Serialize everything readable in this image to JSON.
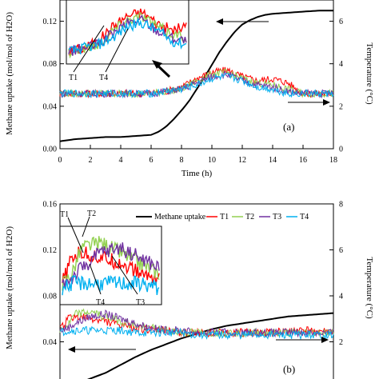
{
  "chart_data": [
    {
      "type": "line",
      "panel_label": "(a)",
      "xlabel": "Time (h)",
      "ylabel": "Methane uptake (mol/mol of H2O)",
      "ylabel_right": "Temperature (°C)",
      "xlim": [
        0,
        18
      ],
      "ylim": [
        0,
        0.14
      ],
      "ylim_right": [
        0,
        7
      ],
      "x_ticks": [
        "0",
        "2",
        "4",
        "6",
        "8",
        "10",
        "12",
        "14",
        "16",
        "18"
      ],
      "y_ticks": [
        "0.00",
        "0.04",
        "0.08",
        "0.12"
      ],
      "y_ticks_right": [
        "0",
        "2",
        "4",
        "6"
      ],
      "inset_labels": [
        "T1",
        "T4"
      ],
      "series": [
        {
          "name": "Methane uptake",
          "axis": "left",
          "color": "#000000",
          "x": [
            0,
            1,
            2,
            3,
            4,
            5,
            6,
            6.5,
            7,
            7.5,
            8,
            8.5,
            9,
            9.5,
            10,
            10.5,
            11,
            11.5,
            12,
            12.5,
            13,
            13.5,
            14,
            15,
            16,
            17,
            18
          ],
          "y": [
            0.007,
            0.009,
            0.01,
            0.011,
            0.011,
            0.012,
            0.013,
            0.016,
            0.021,
            0.028,
            0.036,
            0.045,
            0.056,
            0.067,
            0.079,
            0.091,
            0.101,
            0.11,
            0.117,
            0.121,
            0.124,
            0.126,
            0.127,
            0.128,
            0.129,
            0.13,
            0.13
          ]
        },
        {
          "name": "T1",
          "axis": "right",
          "color": "#ff0000",
          "x": [
            0,
            2,
            4,
            6,
            7,
            8,
            9,
            10,
            11,
            12,
            13,
            14,
            15,
            16,
            18
          ],
          "y": [
            2.6,
            2.6,
            2.6,
            2.6,
            2.7,
            2.9,
            3.3,
            3.6,
            3.7,
            3.4,
            3.2,
            3.3,
            3.1,
            2.6,
            2.6
          ]
        },
        {
          "name": "T2",
          "axis": "right",
          "color": "#92d050",
          "x": [
            0,
            2,
            4,
            6,
            7,
            8,
            9,
            10,
            11,
            12,
            13,
            14,
            15,
            16,
            18
          ],
          "y": [
            2.6,
            2.6,
            2.6,
            2.6,
            2.7,
            2.8,
            3.2,
            3.5,
            3.6,
            3.3,
            3.1,
            3.0,
            2.8,
            2.6,
            2.6
          ]
        },
        {
          "name": "T3",
          "axis": "right",
          "color": "#7030a0",
          "x": [
            0,
            2,
            4,
            6,
            7,
            8,
            9,
            10,
            11,
            12,
            13,
            14,
            15,
            16,
            18
          ],
          "y": [
            2.6,
            2.6,
            2.6,
            2.6,
            2.7,
            2.8,
            3.1,
            3.4,
            3.5,
            3.2,
            3.0,
            2.9,
            2.7,
            2.6,
            2.6
          ]
        },
        {
          "name": "T4",
          "axis": "right",
          "color": "#00b0f0",
          "x": [
            0,
            2,
            4,
            6,
            7,
            8,
            9,
            10,
            11,
            12,
            13,
            14,
            15,
            16,
            18
          ],
          "y": [
            2.6,
            2.6,
            2.6,
            2.6,
            2.7,
            2.8,
            3.0,
            3.3,
            3.4,
            3.2,
            2.9,
            2.8,
            2.6,
            2.6,
            2.6
          ]
        }
      ]
    },
    {
      "type": "line",
      "panel_label": "(b)",
      "xlabel": "",
      "ylabel": "Methane uptake (mol/mol of H2O)",
      "ylabel_right": "Temperature (°C)",
      "xlim": [
        0,
        18
      ],
      "ylim": [
        0,
        0.16
      ],
      "ylim_right": [
        0,
        8
      ],
      "y_ticks": [
        "0.04",
        "0.08",
        "0.12",
        "0.16"
      ],
      "y_ticks_right": [
        "2",
        "4",
        "6",
        "8"
      ],
      "inset_labels": [
        "T1",
        "T2",
        "T4",
        "T3"
      ],
      "legend": [
        "Methane uptake",
        "T1",
        "T2",
        "T3",
        "T4"
      ],
      "series": [
        {
          "name": "Methane uptake",
          "axis": "left",
          "color": "#000000",
          "x": [
            1,
            2,
            3,
            4,
            5,
            6,
            7,
            8,
            9,
            10,
            11,
            12,
            13,
            14,
            15,
            16,
            17,
            18
          ],
          "y": [
            0.003,
            0.008,
            0.013,
            0.02,
            0.027,
            0.033,
            0.038,
            0.043,
            0.047,
            0.051,
            0.054,
            0.056,
            0.058,
            0.06,
            0.062,
            0.063,
            0.064,
            0.065
          ]
        },
        {
          "name": "T1",
          "axis": "right",
          "color": "#ff0000",
          "x": [
            0,
            0.5,
            1,
            2,
            3,
            4,
            5,
            6,
            7,
            8,
            9,
            10,
            12,
            14,
            16,
            18
          ],
          "y": [
            2.5,
            3.0,
            3.1,
            3.0,
            2.9,
            2.7,
            2.6,
            2.5,
            2.5,
            2.4,
            2.4,
            2.4,
            2.4,
            2.4,
            2.5,
            2.4
          ]
        },
        {
          "name": "T2",
          "axis": "right",
          "color": "#92d050",
          "x": [
            0,
            0.5,
            1,
            2,
            3,
            4,
            5,
            6,
            7,
            8,
            9,
            10,
            12,
            14,
            16,
            18
          ],
          "y": [
            2.5,
            2.7,
            3.2,
            3.3,
            3.1,
            2.9,
            2.7,
            2.6,
            2.5,
            2.4,
            2.4,
            2.4,
            2.4,
            2.4,
            2.4,
            2.4
          ]
        },
        {
          "name": "T3",
          "axis": "right",
          "color": "#7030a0",
          "x": [
            0,
            0.5,
            1,
            2,
            3,
            4,
            5,
            6,
            7,
            8,
            9,
            10,
            12,
            14,
            16,
            18
          ],
          "y": [
            2.5,
            2.6,
            2.8,
            3.1,
            3.2,
            3.0,
            2.8,
            2.6,
            2.5,
            2.5,
            2.4,
            2.4,
            2.4,
            2.4,
            2.4,
            2.4
          ]
        },
        {
          "name": "T4",
          "axis": "right",
          "color": "#00b0f0",
          "x": [
            0,
            0.5,
            1,
            2,
            3,
            4,
            5,
            6,
            7,
            8,
            9,
            10,
            12,
            14,
            16,
            18
          ],
          "y": [
            2.4,
            2.5,
            2.5,
            2.5,
            2.5,
            2.5,
            2.4,
            2.4,
            2.4,
            2.4,
            2.3,
            2.3,
            2.3,
            2.3,
            2.3,
            2.3
          ]
        }
      ]
    }
  ]
}
